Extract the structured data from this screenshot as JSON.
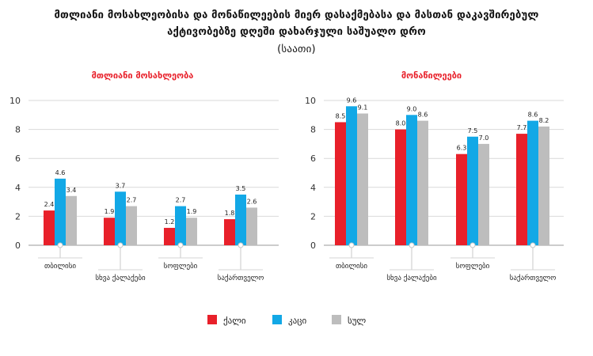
{
  "title": {
    "line1": "მთლიანი მოსახლეობისა და მონაწილეების მიერ დასაქმებასა და მასთან დაკავშირებულ",
    "line2": "აქტივობებზე დღეში დახარჯული საშუალო დრო",
    "line3": "(საათი)"
  },
  "colors": {
    "qali": "#e8202a",
    "kaci": "#12a8e6",
    "sul": "#bdbdbd",
    "panel_title": "#e8202a"
  },
  "legend": [
    {
      "label": "ქალი",
      "color": "#e8202a"
    },
    {
      "label": "კაცი",
      "color": "#12a8e6"
    },
    {
      "label": "სულ",
      "color": "#bdbdbd"
    }
  ],
  "chart_data": [
    {
      "type": "bar",
      "title": "მთლიანი მოსახლეობა",
      "categories": [
        "თბილისი",
        "სხვა ქალაქები",
        "სოფლები",
        "საქართველო"
      ],
      "series": [
        {
          "name": "ქალი",
          "values": [
            2.4,
            1.9,
            1.2,
            1.8
          ]
        },
        {
          "name": "კაცი",
          "values": [
            4.6,
            3.7,
            2.7,
            3.5
          ]
        },
        {
          "name": "სულ",
          "values": [
            3.4,
            2.7,
            1.9,
            2.6
          ]
        }
      ],
      "labels": [
        [
          "2.4",
          "1.9",
          "1.2",
          "1.8"
        ],
        [
          "4.6",
          "3.7",
          "2.7",
          "3.5"
        ],
        [
          "3.4",
          "2.7",
          "1.9",
          "2.6"
        ]
      ],
      "yticks": [
        "0",
        "2",
        "4",
        "6",
        "8",
        "10"
      ],
      "ylim": [
        0,
        10
      ],
      "grid": true
    },
    {
      "type": "bar",
      "title": "მონაწილეები",
      "categories": [
        "თბილისი",
        "სხვა ქალაქები",
        "სოფლები",
        "საქართველო"
      ],
      "series": [
        {
          "name": "ქალი",
          "values": [
            8.5,
            8.0,
            6.3,
            7.7
          ]
        },
        {
          "name": "კაცი",
          "values": [
            9.6,
            9.0,
            7.5,
            8.6
          ]
        },
        {
          "name": "სულ",
          "values": [
            9.1,
            8.6,
            7.0,
            8.2
          ]
        }
      ],
      "labels": [
        [
          "8.5",
          "8.0",
          "6.3",
          "7.7"
        ],
        [
          "9.6",
          "9.0",
          "7.5",
          "8.6"
        ],
        [
          "9.1",
          "8.6",
          "7.0",
          "8.2"
        ]
      ],
      "yticks": [
        "0",
        "2",
        "4",
        "6",
        "8",
        "10"
      ],
      "ylim": [
        0,
        10
      ],
      "grid": true
    }
  ]
}
